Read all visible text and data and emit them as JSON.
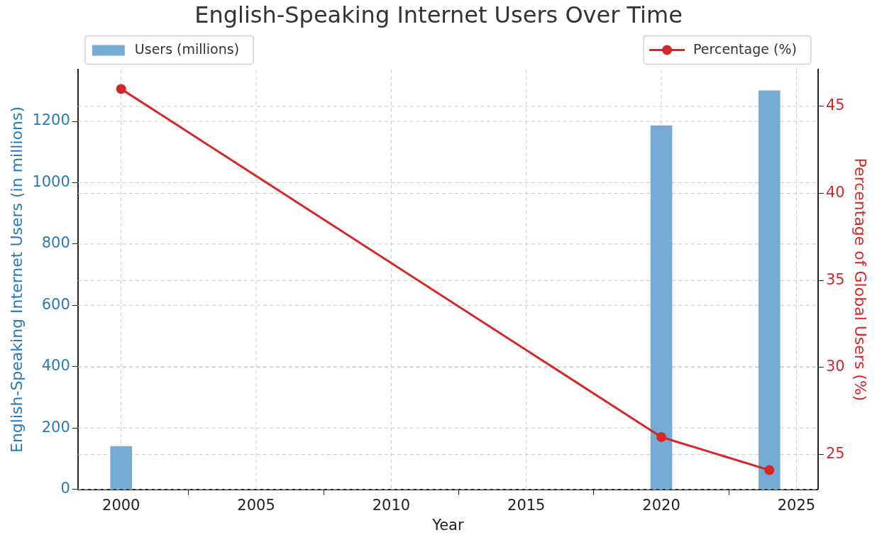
{
  "chart_data": {
    "type": "bar",
    "title": "English-Speaking Internet Users Over Time",
    "xlabel": "Year",
    "ylabel": "English-Speaking Internet Users (in millions)",
    "y2label": "Percentage of Global Users (%)",
    "x": [
      2000,
      2020,
      2024
    ],
    "series": [
      {
        "name": "Users (millions)",
        "color": "#76acd3",
        "values": [
          140,
          1186,
          1300
        ]
      },
      {
        "name": "Percentage (%)",
        "type": "line",
        "axis": "y2",
        "color": "#d62728",
        "values": [
          46,
          26,
          24.1
        ]
      }
    ],
    "xlim": [
      1998.4,
      2025.8
    ],
    "xticks": [
      2000,
      2005,
      2010,
      2015,
      2020,
      2025
    ],
    "ylim": [
      0,
      1368
    ],
    "yticks": [
      0,
      200,
      400,
      600,
      800,
      1000,
      1200
    ],
    "y2lim": [
      23,
      47.1
    ],
    "y2ticks": [
      25,
      30,
      35,
      40,
      45
    ],
    "grid": true,
    "legend": "top",
    "marker": "circle",
    "line_style": "solid"
  }
}
